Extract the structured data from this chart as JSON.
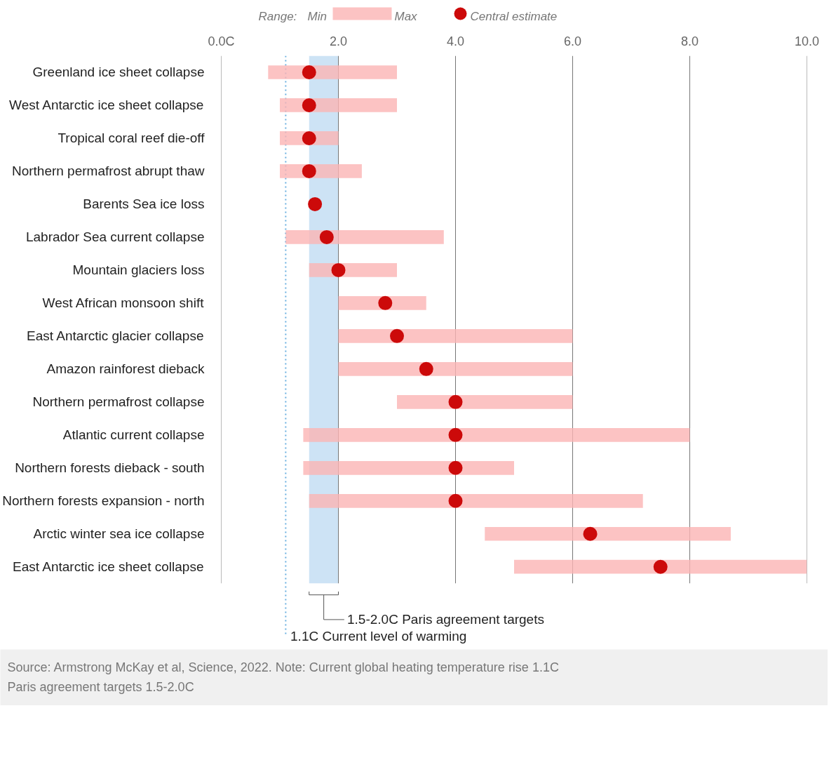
{
  "chart_data": {
    "type": "bar",
    "orientation": "horizontal",
    "categories": [
      "Greenland ice sheet collapse",
      "West Antarctic ice sheet collapse",
      "Tropical coral reef die-off",
      "Northern permafrost abrupt thaw",
      "Barents Sea ice loss",
      "Labrador Sea current collapse",
      "Mountain glaciers loss",
      "West African monsoon shift",
      "East Antarctic glacier collapse",
      "Amazon rainforest dieback",
      "Northern permafrost collapse",
      "Atlantic current collapse",
      "Northern forests dieback - south",
      "Northern forests expansion - north",
      "Arctic winter sea ice collapse",
      "East Antarctic ice sheet collapse"
    ],
    "series": [
      {
        "name": "Max",
        "type": "bar",
        "color": "#fbb4b4",
        "base": [
          0.8,
          1.0,
          1.0,
          1.0,
          null,
          1.1,
          1.5,
          2.0,
          2.0,
          2.0,
          3.0,
          1.4,
          1.4,
          1.5,
          4.5,
          5.0
        ],
        "values": [
          2.2,
          2.0,
          1.0,
          1.4,
          null,
          2.7,
          1.5,
          1.5,
          4.0,
          4.0,
          3.0,
          6.6,
          3.6,
          5.7,
          4.2,
          5.0
        ]
      },
      {
        "name": "Central estimate",
        "type": "scatter",
        "color": "#cc0a0a",
        "x": [
          "Greenland ice sheet collapse",
          "West Antarctic ice sheet collapse",
          "Tropical coral reef die-off",
          "Northern permafrost abrupt thaw",
          "Barents Sea ice loss",
          "Labrador Sea current collapse",
          "Mountain glaciers loss",
          "West African monsoon shift",
          "East Antarctic glacier collapse",
          "Amazon rainforest dieback",
          "Northern permafrost collapse",
          "Atlantic current collapse",
          "Northern forests dieback - south",
          "Northern forests expansion - north",
          "Arctic winter sea ice collapse",
          "East Antarctic ice sheet collapse"
        ],
        "values": [
          1.5,
          1.5,
          1.5,
          1.5,
          1.6,
          1.8,
          2.0,
          2.8,
          3.0,
          3.5,
          4.0,
          4.0,
          4.0,
          4.0,
          6.3,
          7.5
        ]
      }
    ],
    "marker": "circle",
    "xlim": [
      0,
      10
    ],
    "xticks": [
      {
        "value": 0,
        "label": "0.0C"
      },
      {
        "value": 2,
        "label": "2.0"
      },
      {
        "value": 4,
        "label": "4.0"
      },
      {
        "value": 6,
        "label": "6.0"
      },
      {
        "value": 8,
        "label": "8.0"
      },
      {
        "value": 10,
        "label": "10.0"
      }
    ],
    "grid": "x",
    "legend": "top",
    "legend_title": "Range:",
    "ref_lines": [
      {
        "axis": "x",
        "value": 1.1,
        "label": "1.1C Current level of warming",
        "color": "#6ab0e0",
        "line_style": "dotted"
      }
    ],
    "bands": [
      {
        "axis": "x",
        "from": 1.5,
        "to": 2.0,
        "label": "1.5-2.0C Paris agreement targets",
        "color": "#cde3f5"
      }
    ],
    "annotations": [
      "Min",
      "Source: Armstrong McKay et al, Science, 2022. Note: Current global heating temperature rise 1.1C",
      "Paris agreement targets 1.5-2.0C"
    ]
  }
}
